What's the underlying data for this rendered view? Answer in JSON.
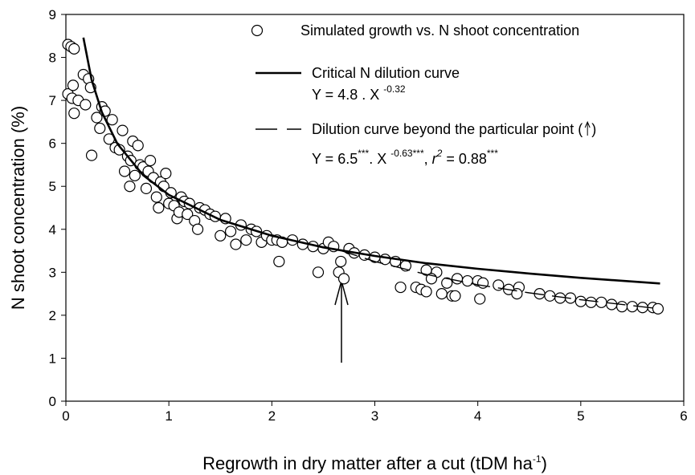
{
  "chart_data": {
    "type": "scatter",
    "xlim": [
      0,
      6
    ],
    "ylim": [
      0,
      9
    ],
    "xticks": [
      0,
      1,
      2,
      3,
      4,
      5,
      6
    ],
    "yticks": [
      0,
      1,
      2,
      3,
      4,
      5,
      6,
      7,
      8,
      9
    ],
    "x_label": [
      {
        "text": "Regrowth in dry matter after a cut (tDM ha"
      },
      {
        "text": "-1",
        "sup": true
      },
      {
        "text": ")"
      }
    ],
    "y_label": "N shoot concentration (%)",
    "color": "#000000",
    "series": [
      {
        "name": "Simulated growth vs. N shoot concentration",
        "type": "scatter",
        "x": [
          0.02,
          0.05,
          0.08,
          0.02,
          0.06,
          0.08,
          0.07,
          0.12,
          0.17,
          0.22,
          0.24,
          0.25,
          0.19,
          0.3,
          0.33,
          0.35,
          0.38,
          0.42,
          0.45,
          0.48,
          0.52,
          0.55,
          0.57,
          0.6,
          0.62,
          0.63,
          0.65,
          0.67,
          0.7,
          0.72,
          0.75,
          0.78,
          0.8,
          0.82,
          0.85,
          0.88,
          0.9,
          0.92,
          0.95,
          0.97,
          1.0,
          1.02,
          1.05,
          1.08,
          1.1,
          1.12,
          1.15,
          1.18,
          1.2,
          1.25,
          1.28,
          1.3,
          1.35,
          1.4,
          1.45,
          1.5,
          1.55,
          1.6,
          1.65,
          1.7,
          1.75,
          1.8,
          1.85,
          1.9,
          1.95,
          2.0,
          2.05,
          2.07,
          2.1,
          2.2,
          2.3,
          2.4,
          2.45,
          2.5,
          2.55,
          2.6,
          2.65,
          2.67,
          2.7,
          2.75,
          2.8,
          2.9,
          3.0,
          3.1,
          3.2,
          3.3,
          3.25,
          3.4,
          3.45,
          3.5,
          3.6,
          3.5,
          3.55,
          3.65,
          3.7,
          3.75,
          3.78,
          3.8,
          3.9,
          4.0,
          4.02,
          4.05,
          4.2,
          4.3,
          4.4,
          4.38,
          4.6,
          4.7,
          4.8,
          4.9,
          5.0,
          5.1,
          5.2,
          5.3,
          5.4,
          5.5,
          5.6,
          5.7,
          5.75
        ],
        "values": [
          8.3,
          8.25,
          8.2,
          7.15,
          7.05,
          6.7,
          7.35,
          7.0,
          7.6,
          7.5,
          7.3,
          5.72,
          6.9,
          6.6,
          6.35,
          6.85,
          6.75,
          6.1,
          6.55,
          5.9,
          5.85,
          6.3,
          5.35,
          5.7,
          5.0,
          5.6,
          6.05,
          5.25,
          5.95,
          5.5,
          5.45,
          4.95,
          5.35,
          5.6,
          5.2,
          4.75,
          4.5,
          5.1,
          5.0,
          5.3,
          4.6,
          4.85,
          4.55,
          4.25,
          4.4,
          4.75,
          4.65,
          4.35,
          4.6,
          4.2,
          4.0,
          4.5,
          4.45,
          4.35,
          4.3,
          3.85,
          4.25,
          3.95,
          3.65,
          4.1,
          3.75,
          4.0,
          3.95,
          3.7,
          3.85,
          3.75,
          3.75,
          3.25,
          3.7,
          3.75,
          3.65,
          3.6,
          3.0,
          3.55,
          3.7,
          3.6,
          3.0,
          3.25,
          2.85,
          3.55,
          3.45,
          3.4,
          3.35,
          3.3,
          3.25,
          3.15,
          2.65,
          2.65,
          2.6,
          3.05,
          3.0,
          2.55,
          2.85,
          2.5,
          2.75,
          2.45,
          2.45,
          2.85,
          2.8,
          2.8,
          2.38,
          2.75,
          2.7,
          2.6,
          2.65,
          2.5,
          2.5,
          2.45,
          2.4,
          2.4,
          2.32,
          2.3,
          2.3,
          2.25,
          2.2,
          2.2,
          2.18,
          2.18,
          2.15
        ]
      },
      {
        "name": "Critical N dilution curve",
        "type": "line",
        "style": "solid",
        "x": [
          0.17,
          0.25,
          0.35,
          0.5,
          0.75,
          1,
          1.5,
          2,
          2.5,
          3,
          3.5,
          4,
          4.5,
          5,
          5.77
        ],
        "values": [
          8.46,
          7.48,
          6.72,
          5.99,
          5.26,
          4.8,
          4.22,
          3.85,
          3.58,
          3.38,
          3.21,
          3.08,
          2.97,
          2.87,
          2.74
        ],
        "equation": [
          {
            "text": "Y = 4.8 . X "
          },
          {
            "text": "-0.32",
            "sup": true
          }
        ]
      },
      {
        "name": "Dilution curve beyond the particular point (",
        "name_end": ")",
        "type": "line",
        "style": "dashed",
        "x": [
          2.65,
          3,
          3.5,
          4,
          4.5,
          5,
          5.77
        ],
        "values": [
          3.52,
          3.25,
          2.95,
          2.71,
          2.52,
          2.36,
          2.15
        ],
        "equation": [
          {
            "text": "Y = 6.5"
          },
          {
            "text": "***",
            "sup": true
          },
          {
            "text": ". X "
          },
          {
            "text": "-0.63***",
            "sup": true
          },
          {
            "text": ", "
          },
          {
            "text": "r",
            "italic": true
          },
          {
            "text": "2",
            "sup": true,
            "italic": true
          },
          {
            "text": " = 0.88"
          },
          {
            "text": "***",
            "sup": true
          }
        ]
      }
    ]
  }
}
